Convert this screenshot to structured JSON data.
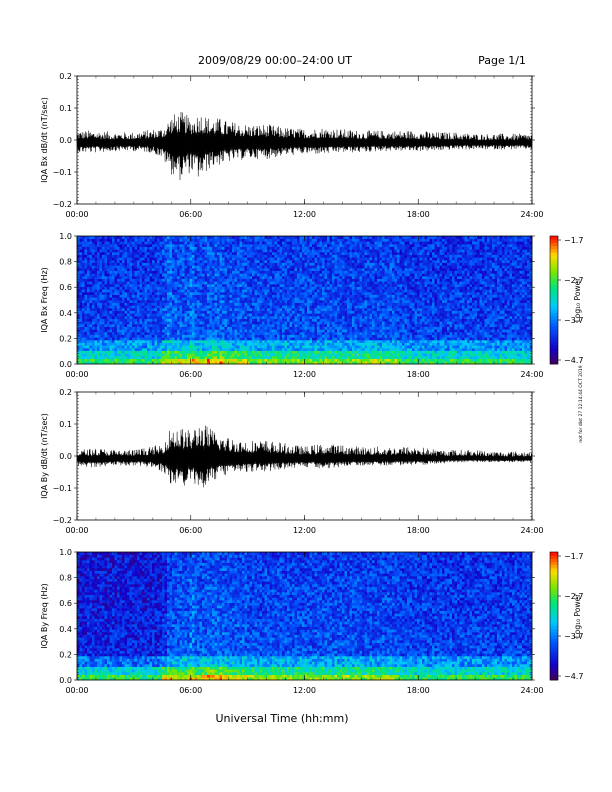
{
  "header": {
    "title": "2009/08/29  00:00–24:00 UT",
    "page": "Page 1/1"
  },
  "side_stamp": "not for dist 27 12:14:44 OCT 2019",
  "xlabel": "Universal Time (hh:mm)",
  "chart_data": [
    {
      "type": "line",
      "ylabel": "IQA Bx dB/dt (nT/sec)",
      "xlim": [
        0,
        24
      ],
      "ylim": [
        -0.2,
        0.2
      ],
      "x_ticks": [
        "00:00",
        "06:00",
        "12:00",
        "18:00",
        "24:00"
      ],
      "y_ticks": [
        "0.2",
        "0.1",
        "0.0",
        "−0.1",
        "−0.2"
      ],
      "envelope": {
        "hours": [
          0,
          1,
          2,
          3,
          4,
          4.5,
          5,
          5.5,
          6,
          6.5,
          7,
          7.5,
          8,
          9,
          10,
          11,
          12,
          13,
          14,
          15,
          16,
          17,
          18,
          19,
          20,
          21,
          22,
          23,
          24
        ],
        "max": [
          0.03,
          0.03,
          0.025,
          0.025,
          0.035,
          0.04,
          0.08,
          0.09,
          0.07,
          0.09,
          0.07,
          0.07,
          0.06,
          0.05,
          0.05,
          0.04,
          0.035,
          0.04,
          0.035,
          0.03,
          0.03,
          0.03,
          0.03,
          0.025,
          0.025,
          0.02,
          0.02,
          0.02,
          0.02
        ],
        "min": [
          -0.04,
          -0.04,
          -0.035,
          -0.035,
          -0.04,
          -0.06,
          -0.11,
          -0.13,
          -0.1,
          -0.13,
          -0.09,
          -0.08,
          -0.07,
          -0.06,
          -0.06,
          -0.05,
          -0.045,
          -0.045,
          -0.04,
          -0.04,
          -0.035,
          -0.035,
          -0.035,
          -0.035,
          -0.03,
          -0.03,
          -0.03,
          -0.03,
          -0.03
        ]
      }
    },
    {
      "type": "heatmap",
      "ylabel": "IQA Bx Freq (Hz)",
      "xlim": [
        0,
        24
      ],
      "ylim": [
        0,
        1.05
      ],
      "x_ticks": [
        "00:00",
        "06:00",
        "12:00",
        "18:00",
        "24:00"
      ],
      "y_ticks": [
        "1.0",
        "0.8",
        "0.6",
        "0.4",
        "0.2",
        "0.0"
      ],
      "colorbar": {
        "label": "Log₁₀ Power",
        "range": [
          -4.7,
          -1.7
        ],
        "ticks": [
          "−1.7",
          "−2.7",
          "−3.7",
          "−4.7"
        ]
      }
    },
    {
      "type": "line",
      "ylabel": "IQA By dB/dt (nT/sec)",
      "xlim": [
        0,
        24
      ],
      "ylim": [
        -0.2,
        0.2
      ],
      "x_ticks": [
        "00:00",
        "06:00",
        "12:00",
        "18:00",
        "24:00"
      ],
      "y_ticks": [
        "0.2",
        "0.1",
        "0.0",
        "−0.1",
        "−0.2"
      ],
      "envelope": {
        "hours": [
          0,
          1,
          2,
          3,
          4,
          4.5,
          5,
          5.5,
          6,
          6.5,
          7,
          7.5,
          8,
          9,
          10,
          11,
          12,
          13,
          14,
          15,
          16,
          17,
          18,
          19,
          20,
          21,
          22,
          23,
          24
        ],
        "max": [
          0.02,
          0.025,
          0.02,
          0.02,
          0.03,
          0.04,
          0.1,
          0.09,
          0.08,
          0.11,
          0.09,
          0.07,
          0.06,
          0.05,
          0.05,
          0.04,
          0.03,
          0.04,
          0.035,
          0.03,
          0.03,
          0.03,
          0.03,
          0.02,
          0.02,
          0.02,
          0.015,
          0.015,
          0.015
        ],
        "min": [
          -0.03,
          -0.04,
          -0.03,
          -0.03,
          -0.035,
          -0.05,
          -0.09,
          -0.1,
          -0.08,
          -0.11,
          -0.09,
          -0.07,
          -0.06,
          -0.05,
          -0.05,
          -0.04,
          -0.035,
          -0.04,
          -0.035,
          -0.03,
          -0.03,
          -0.03,
          -0.03,
          -0.025,
          -0.02,
          -0.02,
          -0.02,
          -0.02,
          -0.02
        ]
      }
    },
    {
      "type": "heatmap",
      "ylabel": "IQA By Freq (Hz)",
      "xlim": [
        0,
        24
      ],
      "ylim": [
        0,
        1.05
      ],
      "x_ticks": [
        "00:00",
        "06:00",
        "12:00",
        "18:00",
        "24:00"
      ],
      "y_ticks": [
        "1.0",
        "0.8",
        "0.6",
        "0.4",
        "0.2",
        "0.0"
      ],
      "colorbar": {
        "label": "Log₁₀ Power",
        "range": [
          -4.7,
          -1.7
        ],
        "ticks": [
          "−1.7",
          "−2.7",
          "−3.7",
          "−4.7"
        ]
      }
    }
  ]
}
